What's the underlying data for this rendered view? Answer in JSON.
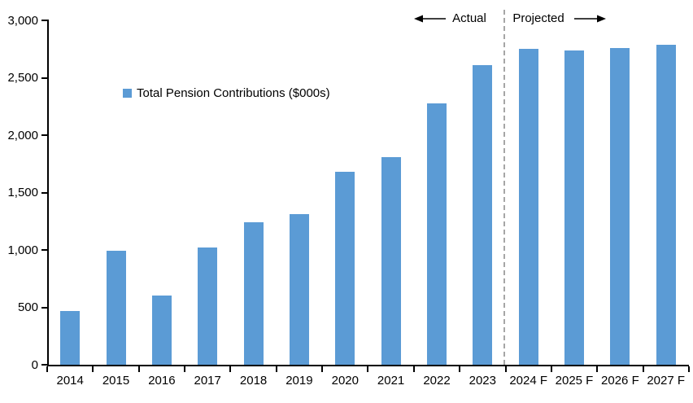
{
  "chart_data": {
    "type": "bar",
    "legend": "Total Pension Contributions ($000s)",
    "categories": [
      "2014",
      "2015",
      "2016",
      "2017",
      "2018",
      "2019",
      "2020",
      "2021",
      "2022",
      "2023",
      "2024 F",
      "2025 F",
      "2026 F",
      "2027 F"
    ],
    "values": [
      470,
      990,
      600,
      1020,
      1240,
      1315,
      1680,
      1810,
      2280,
      2610,
      2750,
      2740,
      2760,
      2790
    ],
    "title": "",
    "xlabel": "",
    "ylabel": "",
    "ylim": [
      0,
      3000
    ],
    "y_ticks": [
      "0",
      "500",
      "1,000",
      "1,500",
      "2,000",
      "2,500",
      "3,000"
    ],
    "y_tick_values": [
      0,
      500,
      1000,
      1500,
      2000,
      2500,
      3000
    ],
    "grid": false,
    "legend_position": "inside-upper-left",
    "bar_color": "#5b9bd5",
    "axis_color": "#000000",
    "divider_color": "#a6a6a6",
    "divider_after_category": "2023",
    "annotations": {
      "actual_label": "Actual",
      "projected_label": "Projected"
    }
  }
}
